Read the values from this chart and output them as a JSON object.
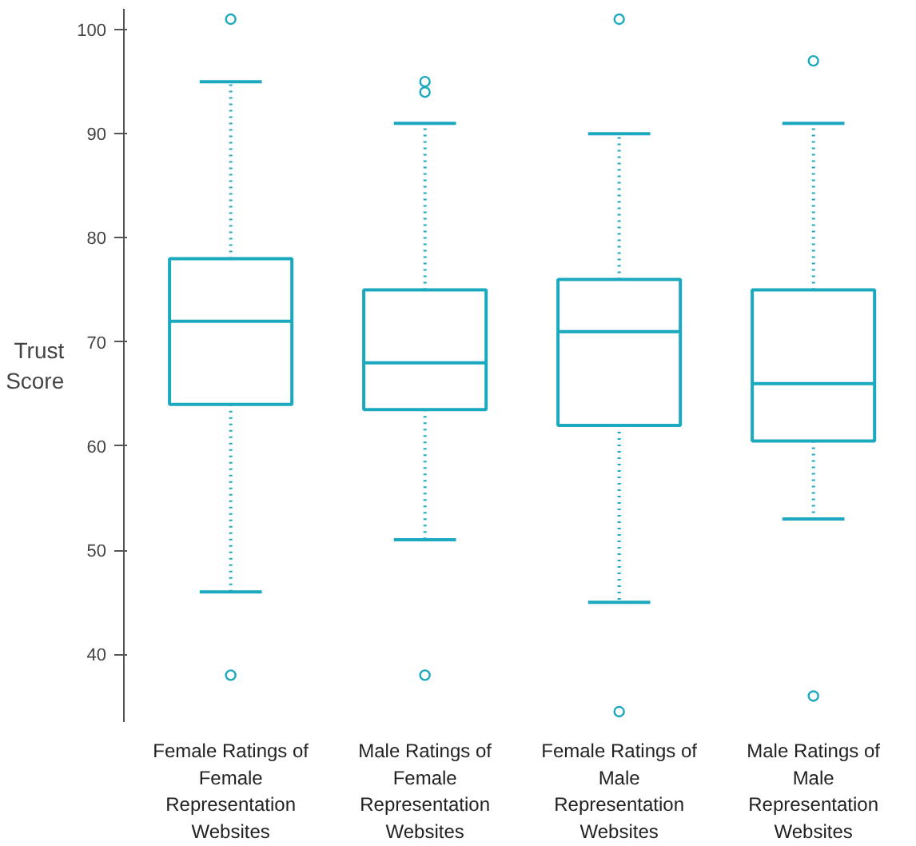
{
  "chart_data": {
    "type": "box",
    "ylabel": "Trust\nScore",
    "categories": [
      "Female Ratings of\nFemale\nRepresentation\nWebsites",
      "Male Ratings of\nFemale\nRepresentation\nWebsites",
      "Female Ratings of\nMale\nRepresentation\nWebsites",
      "Male Ratings of\nMale\nRepresentation\nWebsites"
    ],
    "series": [
      {
        "color": "#1aa9be",
        "boxes": [
          {
            "low": 46,
            "q1": 64,
            "median": 72,
            "q3": 78,
            "high": 95,
            "outliers": [
              101,
              38
            ]
          },
          {
            "low": 51,
            "q1": 63.5,
            "median": 68,
            "q3": 75,
            "high": 91,
            "outliers": [
              95,
              94,
              38
            ]
          },
          {
            "low": 45,
            "q1": 62,
            "median": 71,
            "q3": 76,
            "high": 90,
            "outliers": [
              101,
              34.5
            ]
          },
          {
            "low": 53,
            "q1": 60.5,
            "median": 66,
            "q3": 75,
            "high": 91,
            "outliers": [
              97,
              36
            ]
          }
        ]
      }
    ],
    "ylim": [
      33.5,
      102
    ],
    "yticks": [
      40,
      50,
      60,
      70,
      80,
      90,
      100
    ],
    "grid": false
  }
}
